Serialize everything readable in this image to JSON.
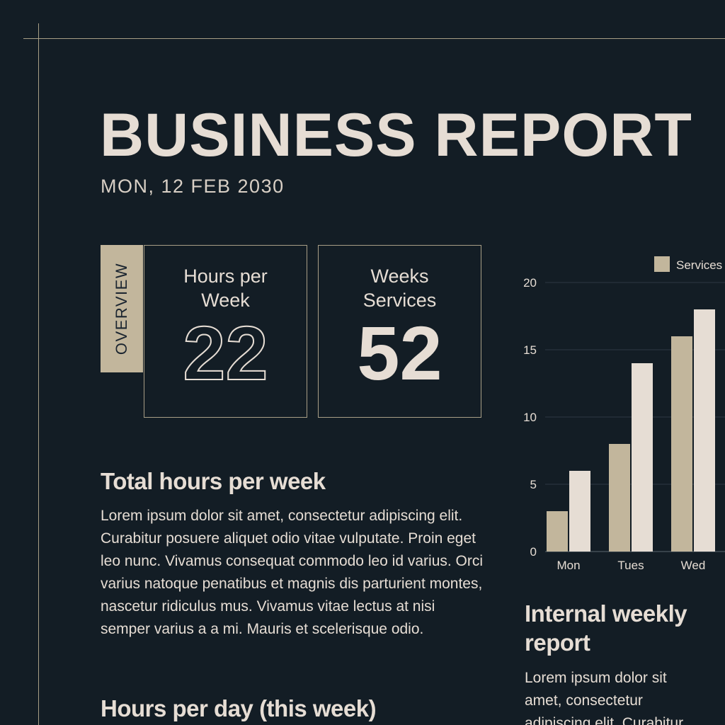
{
  "header": {
    "title": "BUSINESS REPORT",
    "date": "MON, 12 FEB 2030"
  },
  "overview": {
    "tag": "OVERVIEW",
    "stats": [
      {
        "label_line1": "Hours per",
        "label_line2": "Week",
        "value": "22"
      },
      {
        "label_line1": "Weeks",
        "label_line2": "Services",
        "value": "52"
      }
    ]
  },
  "sections": {
    "total_title": "Total hours per week",
    "total_body": "Lorem ipsum dolor sit amet, consectetur adipiscing elit. Curabitur posuere aliquet odio vitae vulputate. Proin eget leo nunc. Vivamus consequat commodo leo id varius. Orci varius natoque penatibus et magnis dis parturient montes, nascetur ridiculus mus. Vivamus vitae lectus at nisi semper varius a a mi. Mauris et scelerisque odio.",
    "day_title": "Hours per day (this week)",
    "internal_title": "Internal weekly report",
    "internal_body": "Lorem ipsum dolor sit amet, consectetur adipiscing elit. Curabitur"
  },
  "colors": {
    "background": "#131d25",
    "accent": "#c2b69c",
    "text": "#e6ddd4"
  },
  "chart_data": {
    "type": "bar",
    "categories": [
      "Mon",
      "Tues",
      "Wed"
    ],
    "series": [
      {
        "name": "Services",
        "values": [
          3,
          8,
          16
        ],
        "color": "#c2b69c"
      },
      {
        "name": "",
        "values": [
          6,
          14,
          18
        ],
        "color": "#e6ddd4"
      }
    ],
    "ylim": [
      0,
      20
    ],
    "yticks": [
      0,
      5,
      10,
      15,
      20
    ],
    "grid": true,
    "legend": "top-right"
  }
}
